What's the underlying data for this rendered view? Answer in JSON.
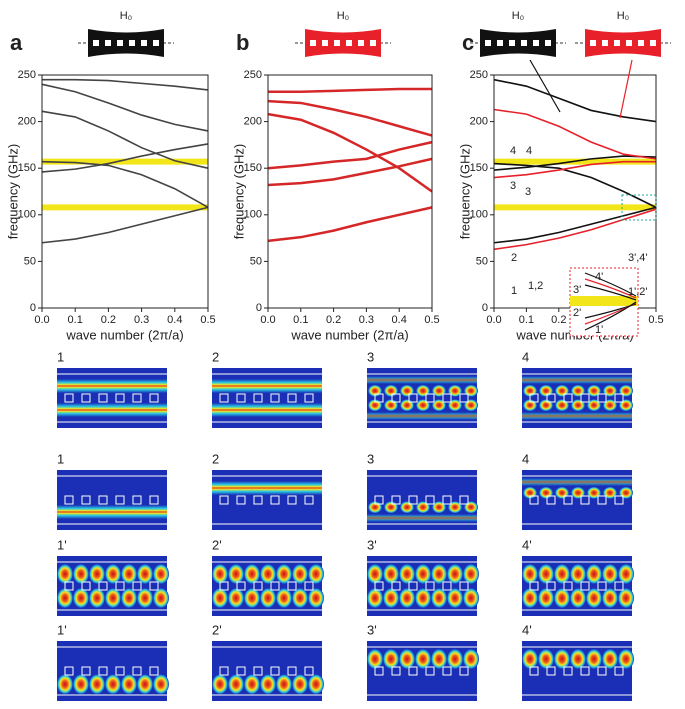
{
  "chart_data": [
    {
      "type": "line",
      "letter": "a",
      "schematics": [
        {
          "label": "H₀",
          "color": "#111111"
        }
      ],
      "xlabel": "wave number (2π/a)",
      "ylabel": "frequency (GHz)",
      "xlim": [
        0,
        0.5
      ],
      "ylim": [
        0,
        250
      ],
      "xticks": [
        {
          "value": 0,
          "label": "0.0"
        },
        0.1,
        0.2,
        0.3,
        0.4,
        0.5
      ],
      "yticks": [
        0,
        50,
        100,
        150,
        200,
        250
      ],
      "highlights": [
        108,
        157
      ],
      "highlight_color": "#f2e61a",
      "x": [
        0,
        0.1,
        0.2,
        0.3,
        0.4,
        0.5
      ],
      "series": [
        {
          "color": "#444444",
          "values": [
            70,
            74,
            81,
            90,
            99,
            108
          ]
        },
        {
          "color": "#444444",
          "values": [
            146,
            149,
            155,
            163,
            170,
            176
          ]
        },
        {
          "color": "#444444",
          "values": [
            157,
            156,
            153,
            143,
            128,
            108
          ]
        },
        {
          "color": "#444444",
          "values": [
            211,
            205,
            190,
            172,
            158,
            150
          ]
        },
        {
          "color": "#444444",
          "values": [
            240,
            232,
            220,
            207,
            197,
            190
          ]
        },
        {
          "color": "#444444",
          "values": [
            245,
            245,
            244,
            241,
            238,
            234
          ]
        }
      ]
    },
    {
      "type": "line",
      "letter": "b",
      "schematics": [
        {
          "label": "H₀",
          "color": "#e8202a"
        }
      ],
      "xlabel": "wave number (2π/a)",
      "ylabel": "frequency (GHz)",
      "xlim": [
        0,
        0.5
      ],
      "ylim": [
        0,
        250
      ],
      "xticks": [
        {
          "value": 0,
          "label": "0.0"
        },
        0.1,
        0.2,
        0.3,
        0.4,
        0.5
      ],
      "yticks": [
        0,
        50,
        100,
        150,
        200,
        250
      ],
      "x": [
        0,
        0.1,
        0.2,
        0.3,
        0.4,
        0.5
      ],
      "series": [
        {
          "color": "#d62728",
          "values": [
            72,
            76,
            83,
            92,
            100,
            108
          ]
        },
        {
          "color": "#d62728",
          "values": [
            132,
            134,
            138,
            145,
            152,
            160
          ]
        },
        {
          "color": "#d62728",
          "values": [
            150,
            153,
            157,
            160,
            170,
            178
          ]
        },
        {
          "color": "#d62728",
          "values": [
            208,
            202,
            188,
            170,
            150,
            125
          ]
        },
        {
          "color": "#d62728",
          "values": [
            222,
            220,
            213,
            205,
            195,
            185
          ]
        },
        {
          "color": "#d62728",
          "values": [
            232,
            232,
            233,
            234,
            235,
            235
          ]
        }
      ]
    },
    {
      "type": "line",
      "letter": "c",
      "schematics": [
        {
          "label": "H₀",
          "color": "#111111"
        },
        {
          "label": "H₀",
          "color": "#e8202a"
        }
      ],
      "xlabel": "wave number (2π/a)",
      "ylabel": "frequency (GHz)",
      "xlim": [
        0,
        0.5
      ],
      "ylim": [
        0,
        250
      ],
      "xticks": [
        {
          "value": 0,
          "label": "0.0"
        },
        0.1,
        0.2,
        0.3,
        0.4,
        0.5
      ],
      "yticks": [
        0,
        50,
        100,
        150,
        200,
        250
      ],
      "highlights": [
        108,
        157
      ],
      "highlight_color": "#f2e61a",
      "x": [
        0,
        0.1,
        0.2,
        0.3,
        0.4,
        0.5
      ],
      "series": [
        {
          "color": "#111111",
          "values": [
            70,
            74,
            81,
            90,
            99,
            108
          ]
        },
        {
          "color": "#111111",
          "values": [
            148,
            151,
            155,
            160,
            163,
            162
          ]
        },
        {
          "color": "#111111",
          "values": [
            155,
            153,
            150,
            140,
            125,
            108
          ]
        },
        {
          "color": "#111111",
          "values": [
            245,
            238,
            225,
            212,
            205,
            200
          ]
        },
        {
          "color": "#e8202a",
          "values": [
            63,
            68,
            75,
            84,
            95,
            106
          ]
        },
        {
          "color": "#e8202a",
          "values": [
            140,
            143,
            148,
            154,
            157,
            157
          ]
        },
        {
          "color": "#e8202a",
          "values": [
            213,
            208,
            195,
            178,
            165,
            160
          ]
        }
      ],
      "annotations": [
        {
          "text": "4",
          "color": "#e8202a"
        },
        {
          "text": "4",
          "color": "#222222"
        },
        {
          "text": "3",
          "color": "#e8202a"
        },
        {
          "text": "3",
          "color": "#222222"
        },
        {
          "text": "2",
          "color": "#e8202a"
        },
        {
          "text": "1",
          "color": "#e8202a"
        },
        {
          "text": "1,2",
          "color": "#222222"
        },
        {
          "text": "3',4'",
          "color": "#222222"
        },
        {
          "text": "1',2'",
          "color": "#222222"
        },
        {
          "text": "4'",
          "color": "#e8202a"
        },
        {
          "text": "3'",
          "color": "#e8202a"
        },
        {
          "text": "2'",
          "color": "#e8202a"
        },
        {
          "text": "1'",
          "color": "#e8202a"
        }
      ]
    }
  ],
  "mode_panels": {
    "rows": [
      {
        "color": "#222222",
        "labels": [
          "1",
          "2",
          "3",
          "4"
        ]
      },
      {
        "color": "#e8202a",
        "labels": [
          "1",
          "2",
          "3",
          "4"
        ]
      },
      {
        "color": "#222222",
        "labels": [
          "1'",
          "2'",
          "3'",
          "4'"
        ]
      },
      {
        "color": "#e8202a",
        "labels": [
          "1'",
          "2'",
          "3'",
          "4'"
        ]
      }
    ]
  }
}
